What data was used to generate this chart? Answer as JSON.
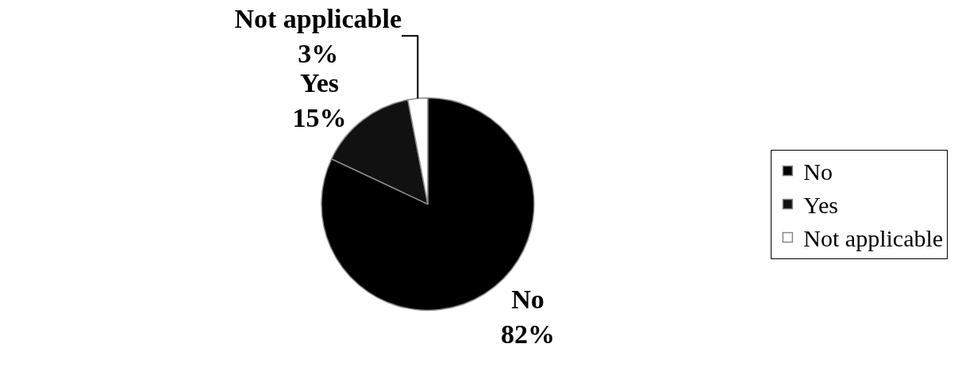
{
  "chart_data": {
    "type": "pie",
    "categories": [
      "No",
      "Yes",
      "Not applicable"
    ],
    "values": [
      82,
      15,
      3
    ],
    "value_labels": [
      "82%",
      "15%",
      "3%"
    ],
    "colors": [
      "#000000",
      "#111111",
      "#ffffff"
    ],
    "legend": "right"
  }
}
